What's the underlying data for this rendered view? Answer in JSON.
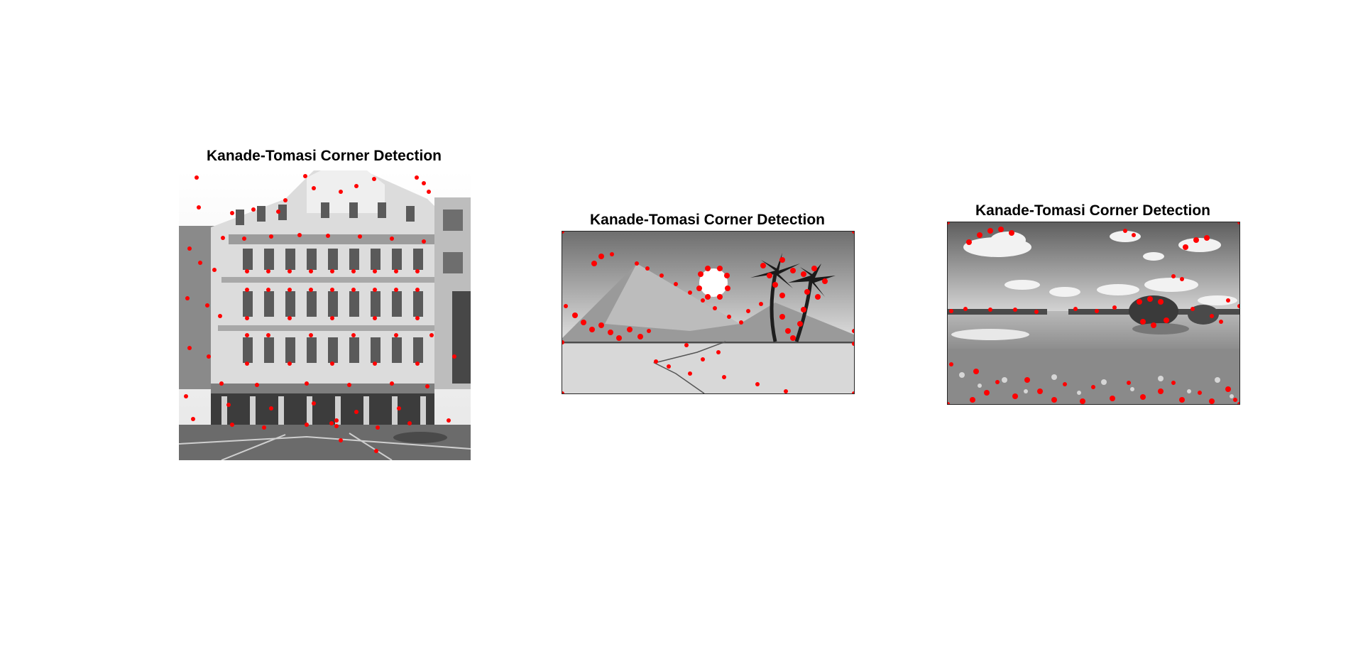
{
  "figure": {
    "panels": [
      {
        "title": "Kanade-Tomasi Corner Detection",
        "scene": "building"
      },
      {
        "title": "Kanade-Tomasi Corner Detection",
        "scene": "beach-sketch"
      },
      {
        "title": "Kanade-Tomasi Corner Detection",
        "scene": "lake-landscape"
      }
    ],
    "colors": {
      "corner_marker": "#ff0000",
      "background": "#ffffff"
    }
  }
}
